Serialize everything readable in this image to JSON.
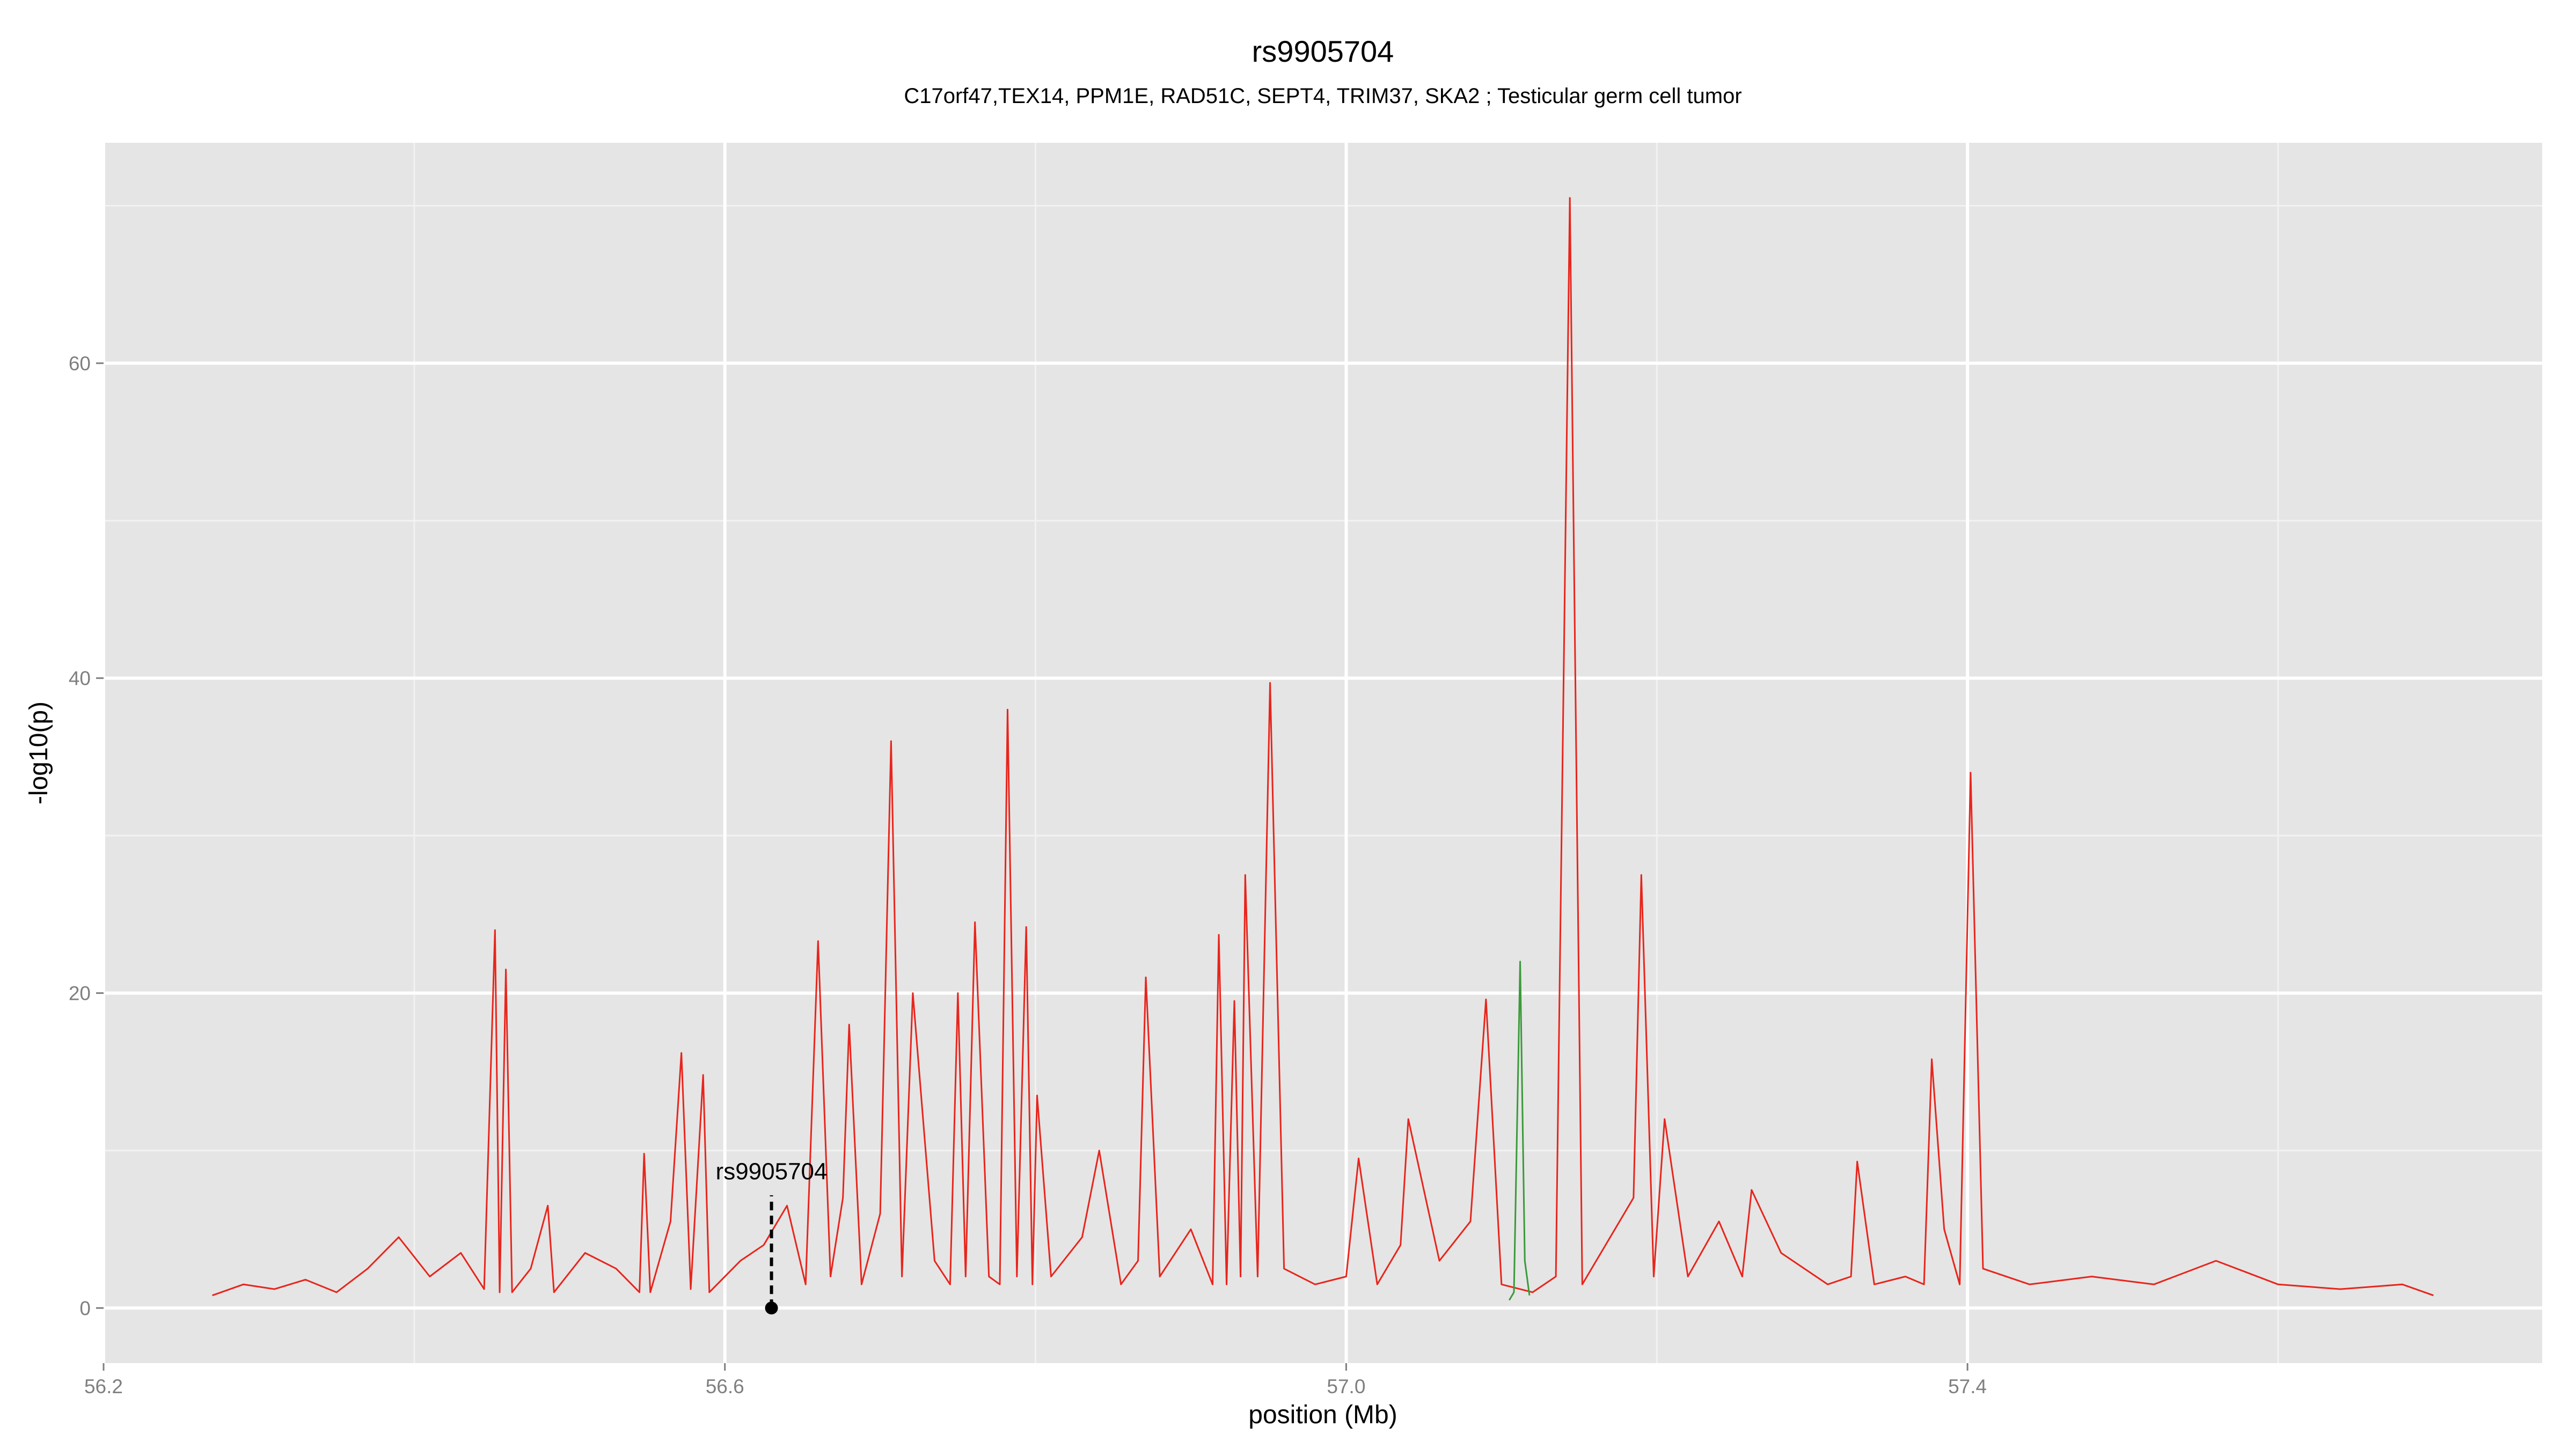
{
  "chart_data": {
    "type": "line",
    "title": "rs9905704",
    "subtitle": "C17orf47,TEX14, PPM1E, RAD51C, SEPT4, TRIM37, SKA2 ; Testicular germ cell tumor",
    "x_label": "position (Mb)",
    "y_label": "-log10(p)",
    "xlim": [
      56.2,
      57.77
    ],
    "ylim": [
      -3.5,
      74
    ],
    "xticks": [
      {
        "value": 56.2,
        "label": "56.2"
      },
      {
        "value": 56.6,
        "label": "56.6"
      },
      {
        "value": 57.0,
        "label": "57.0"
      },
      {
        "value": 57.4,
        "label": "57.4"
      }
    ],
    "yticks": [
      0,
      20,
      40,
      60
    ],
    "xminor": [
      56.4,
      56.8,
      57.2,
      57.6
    ],
    "yminor": [
      10,
      30,
      50,
      70
    ],
    "grid": true,
    "series": [
      {
        "color": "#e8251c",
        "x": [
          56.27,
          56.29,
          56.31,
          56.33,
          56.35,
          56.37,
          56.39,
          56.41,
          56.43,
          56.445,
          56.452,
          56.455,
          56.459,
          56.463,
          56.475,
          56.486,
          56.49,
          56.51,
          56.53,
          56.545,
          56.548,
          56.552,
          56.565,
          56.572,
          56.578,
          56.586,
          56.59,
          56.61,
          56.625,
          56.64,
          56.652,
          56.66,
          56.668,
          56.676,
          56.68,
          56.688,
          56.7,
          56.707,
          56.714,
          56.721,
          56.735,
          56.745,
          56.75,
          56.755,
          56.761,
          56.77,
          56.777,
          56.782,
          56.788,
          56.794,
          56.798,
          56.801,
          56.81,
          56.83,
          56.841,
          56.855,
          56.866,
          56.871,
          56.88,
          56.9,
          56.914,
          56.918,
          56.923,
          56.928,
          56.932,
          56.935,
          56.943,
          56.951,
          56.96,
          56.98,
          57.0,
          57.008,
          57.02,
          57.035,
          57.04,
          57.06,
          57.08,
          57.09,
          57.1,
          57.12,
          57.135,
          57.144,
          57.152,
          57.17,
          57.185,
          57.19,
          57.198,
          57.205,
          57.22,
          57.24,
          57.255,
          57.261,
          57.28,
          57.31,
          57.325,
          57.329,
          57.34,
          57.36,
          57.372,
          57.377,
          57.385,
          57.395,
          57.402,
          57.41,
          57.44,
          57.48,
          57.52,
          57.56,
          57.6,
          57.64,
          57.68,
          57.7
        ],
        "values": [
          0.8,
          1.5,
          1.2,
          1.8,
          1.0,
          2.5,
          4.5,
          2.0,
          3.5,
          1.2,
          24,
          1.0,
          21.5,
          1.0,
          2.5,
          6.5,
          1.0,
          3.5,
          2.5,
          1.0,
          9.8,
          1.0,
          5.5,
          16.2,
          1.2,
          14.8,
          1.0,
          3.0,
          4.0,
          6.5,
          1.5,
          23.3,
          2.0,
          7.0,
          18,
          1.5,
          6,
          36,
          2.0,
          20,
          3.0,
          1.5,
          20,
          2.0,
          24.5,
          2.0,
          1.5,
          38,
          2.0,
          24.2,
          1.5,
          13.5,
          2.0,
          4.5,
          10,
          1.5,
          3.0,
          21,
          2.0,
          5.0,
          1.5,
          23.7,
          1.5,
          19.5,
          2.0,
          27.5,
          2.0,
          39.7,
          2.5,
          1.5,
          2.0,
          9.5,
          1.5,
          4.0,
          12,
          3.0,
          5.5,
          19.6,
          1.5,
          1.0,
          2.0,
          70.5,
          1.5,
          4.5,
          7.0,
          27.5,
          2.0,
          12,
          2.0,
          5.5,
          2.0,
          7.5,
          3.5,
          1.5,
          2.0,
          9.3,
          1.5,
          2.0,
          1.5,
          15.8,
          5.0,
          1.5,
          34,
          2.5,
          1.5,
          2.0,
          1.5,
          3.0,
          1.5,
          1.2,
          1.5,
          0.8
        ]
      },
      {
        "color": "#3a9a3a",
        "x": [
          57.105,
          57.108,
          57.112,
          57.115,
          57.118
        ],
        "values": [
          0.5,
          1.0,
          22,
          3.0,
          0.8
        ]
      }
    ],
    "annotation": {
      "text": "rs9905704",
      "x": 56.63,
      "y": 0
    }
  }
}
